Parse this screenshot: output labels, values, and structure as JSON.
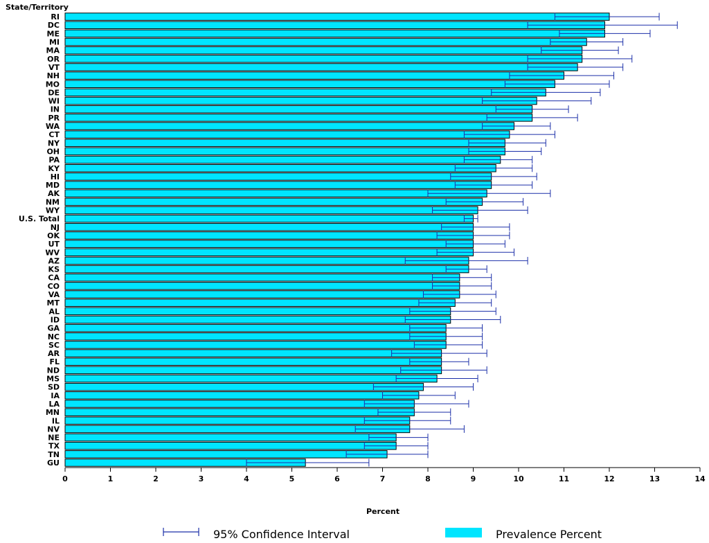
{
  "colors": {
    "bar": "#00e5ff",
    "bar_stroke": "#000000",
    "error": "#1a2ea8"
  },
  "legend": {
    "ci_label": "95% Confidence Interval",
    "prevalence_label": "Prevalence Percent"
  },
  "chart_data": {
    "type": "bar",
    "orientation": "horizontal",
    "title": "",
    "ylabel": "State/Territory",
    "xlabel": "Percent",
    "xlim": [
      0,
      14
    ],
    "xticks": [
      0,
      1,
      2,
      3,
      4,
      5,
      6,
      7,
      8,
      9,
      10,
      11,
      12,
      13,
      14
    ],
    "grid": false,
    "legend_position": "bottom",
    "categories": [
      "RI",
      "DC",
      "ME",
      "MI",
      "MA",
      "OR",
      "VT",
      "NH",
      "MO",
      "DE",
      "WI",
      "IN",
      "PR",
      "WA",
      "CT",
      "NY",
      "OH",
      "PA",
      "KY",
      "HI",
      "MD",
      "AK",
      "NM",
      "WY",
      "U.S. Total",
      "NJ",
      "OK",
      "UT",
      "WV",
      "AZ",
      "KS",
      "CA",
      "CO",
      "VA",
      "MT",
      "AL",
      "ID",
      "GA",
      "NC",
      "SC",
      "AR",
      "FL",
      "ND",
      "MS",
      "SD",
      "IA",
      "LA",
      "MN",
      "IL",
      "NV",
      "NE",
      "TX",
      "TN",
      "GU"
    ],
    "series": [
      {
        "name": "Prevalence Percent",
        "values": [
          12.0,
          11.9,
          11.9,
          11.5,
          11.4,
          11.4,
          11.3,
          11.0,
          10.8,
          10.6,
          10.4,
          10.3,
          10.3,
          9.9,
          9.8,
          9.7,
          9.7,
          9.6,
          9.5,
          9.4,
          9.4,
          9.3,
          9.2,
          9.1,
          9.0,
          9.0,
          9.0,
          9.0,
          9.0,
          8.9,
          8.9,
          8.7,
          8.7,
          8.7,
          8.6,
          8.5,
          8.5,
          8.4,
          8.4,
          8.4,
          8.3,
          8.3,
          8.3,
          8.2,
          7.9,
          7.8,
          7.7,
          7.7,
          7.6,
          7.6,
          7.3,
          7.3,
          7.1,
          5.3
        ]
      },
      {
        "name": "95% Confidence Interval",
        "lower": [
          10.8,
          10.2,
          10.9,
          10.7,
          10.5,
          10.2,
          10.2,
          9.8,
          9.7,
          9.4,
          9.2,
          9.5,
          9.3,
          9.2,
          8.8,
          8.9,
          8.9,
          8.8,
          8.6,
          8.5,
          8.6,
          8.0,
          8.4,
          8.1,
          8.8,
          8.3,
          8.2,
          8.4,
          8.2,
          7.5,
          8.4,
          8.1,
          8.1,
          7.9,
          7.8,
          7.6,
          7.5,
          7.6,
          7.6,
          7.7,
          7.2,
          7.6,
          7.4,
          7.3,
          6.8,
          7.0,
          6.6,
          6.9,
          6.6,
          6.4,
          6.7,
          6.6,
          6.2,
          4.0
        ],
        "upper": [
          13.1,
          13.5,
          12.9,
          12.3,
          12.2,
          12.5,
          12.3,
          12.1,
          12.0,
          11.8,
          11.6,
          11.1,
          11.3,
          10.7,
          10.8,
          10.6,
          10.5,
          10.3,
          10.3,
          10.4,
          10.3,
          10.7,
          10.1,
          10.2,
          9.1,
          9.8,
          9.8,
          9.7,
          9.9,
          10.2,
          9.3,
          9.4,
          9.4,
          9.5,
          9.4,
          9.5,
          9.6,
          9.2,
          9.2,
          9.2,
          9.3,
          8.9,
          9.3,
          9.1,
          9.0,
          8.6,
          8.9,
          8.5,
          8.5,
          8.8,
          8.0,
          8.0,
          8.0,
          6.7
        ]
      }
    ]
  }
}
